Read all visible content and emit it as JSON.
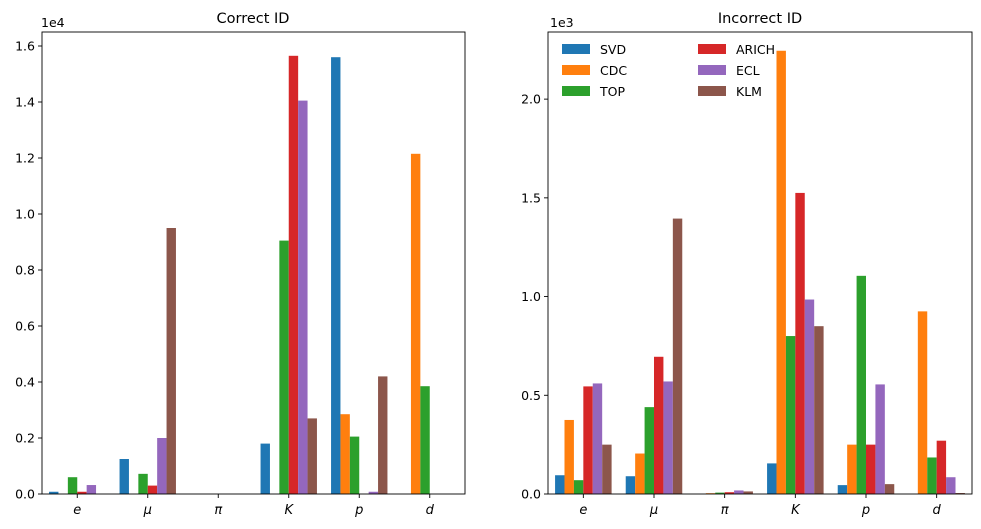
{
  "figure": {
    "panels": [
      "Correct ID",
      "Incorrect ID"
    ]
  },
  "chart_data": [
    {
      "type": "bar",
      "title": "Correct ID",
      "xlabel": "",
      "ylabel": "",
      "y_offset_label": "1e4",
      "ylim": [
        0,
        1.65
      ],
      "yticks": [
        "0.0",
        "0.2",
        "0.4",
        "0.6",
        "0.8",
        "1.0",
        "1.2",
        "1.4",
        "1.6"
      ],
      "categories": [
        "e",
        "μ",
        "π",
        "K",
        "p",
        "d"
      ],
      "legend": false,
      "series": [
        {
          "name": "SVD",
          "color": "#1f77b4",
          "values": [
            0.008,
            0.125,
            0.0,
            0.18,
            1.56,
            0.0
          ]
        },
        {
          "name": "CDC",
          "color": "#ff7f0e",
          "values": [
            0.0,
            0.0,
            0.0,
            0.0,
            0.285,
            1.215
          ]
        },
        {
          "name": "TOP",
          "color": "#2ca02c",
          "values": [
            0.06,
            0.072,
            0.0,
            0.905,
            0.205,
            0.385
          ]
        },
        {
          "name": "ARICH",
          "color": "#d62728",
          "values": [
            0.008,
            0.03,
            0.0,
            1.565,
            0.0,
            0.0
          ]
        },
        {
          "name": "ECL",
          "color": "#9467bd",
          "values": [
            0.032,
            0.2,
            0.0,
            1.405,
            0.008,
            0.0
          ]
        },
        {
          "name": "KLM",
          "color": "#8c564b",
          "values": [
            0.0,
            0.95,
            0.0,
            0.27,
            0.42,
            0.0
          ]
        }
      ]
    },
    {
      "type": "bar",
      "title": "Incorrect ID",
      "xlabel": "",
      "ylabel": "",
      "y_offset_label": "1e3",
      "ylim": [
        0,
        2.34
      ],
      "yticks": [
        "0.0",
        "0.5",
        "1.0",
        "1.5",
        "2.0"
      ],
      "categories": [
        "e",
        "μ",
        "π",
        "K",
        "p",
        "d"
      ],
      "legend": true,
      "legend_position": "top-left",
      "series": [
        {
          "name": "SVD",
          "color": "#1f77b4",
          "values": [
            0.095,
            0.09,
            0.0,
            0.155,
            0.045,
            0.0
          ]
        },
        {
          "name": "CDC",
          "color": "#ff7f0e",
          "values": [
            0.375,
            0.205,
            0.004,
            2.245,
            0.25,
            0.925
          ]
        },
        {
          "name": "TOP",
          "color": "#2ca02c",
          "values": [
            0.07,
            0.44,
            0.007,
            0.8,
            1.105,
            0.185
          ]
        },
        {
          "name": "ARICH",
          "color": "#d62728",
          "values": [
            0.545,
            0.695,
            0.009,
            1.525,
            0.25,
            0.27
          ]
        },
        {
          "name": "ECL",
          "color": "#9467bd",
          "values": [
            0.56,
            0.57,
            0.018,
            0.985,
            0.555,
            0.085
          ]
        },
        {
          "name": "KLM",
          "color": "#8c564b",
          "values": [
            0.25,
            1.395,
            0.013,
            0.85,
            0.05,
            0.005
          ]
        }
      ]
    }
  ]
}
